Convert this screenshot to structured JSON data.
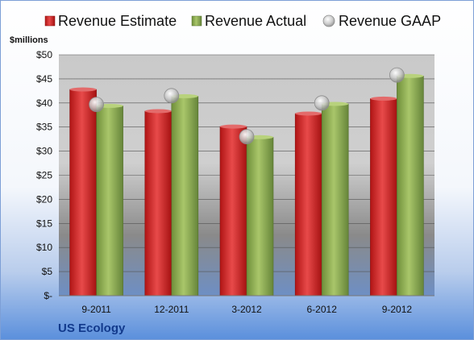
{
  "chart_data": {
    "type": "bar",
    "company": "US Ecology",
    "unit_label": "$millions",
    "categories": [
      "9-2011",
      "12-2011",
      "3-2012",
      "6-2012",
      "9-2012"
    ],
    "series": [
      {
        "name": "Revenue Estimate",
        "kind": "bar",
        "color": "#d42020",
        "values": [
          42.8,
          38.3,
          35.1,
          37.8,
          40.9
        ]
      },
      {
        "name": "Revenue Actual",
        "kind": "bar",
        "color": "#8fb04f",
        "values": [
          39.4,
          41.4,
          32.9,
          39.8,
          45.6
        ]
      },
      {
        "name": "Revenue GAAP",
        "kind": "point",
        "color": "#b8b8b8",
        "values": [
          39.7,
          41.5,
          33.0,
          40.0,
          45.8
        ]
      }
    ],
    "ylim": [
      0,
      50
    ],
    "yticks": [
      0,
      5,
      10,
      15,
      20,
      25,
      30,
      35,
      40,
      45,
      50
    ],
    "ytick_labels": [
      "$-",
      "$5",
      "$10",
      "$15",
      "$20",
      "$25",
      "$30",
      "$35",
      "$40",
      "$45",
      "$50"
    ],
    "grid": true,
    "legend_position": "top"
  }
}
